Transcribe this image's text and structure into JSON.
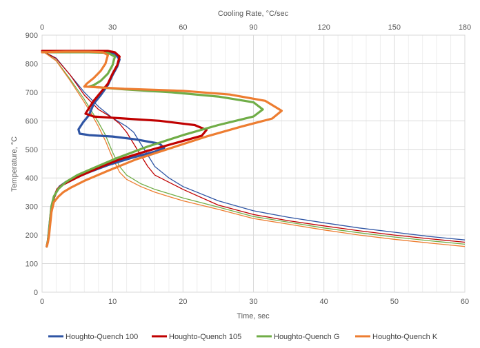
{
  "chart_data": {
    "type": "line",
    "title": "",
    "xlabel": "Time, sec",
    "x2label": "Cooling Rate, °C/sec",
    "ylabel": "Temperature, °C",
    "xlim": [
      0,
      60
    ],
    "x2lim": [
      0,
      180
    ],
    "ylim": [
      0,
      900
    ],
    "x_ticks": [
      0,
      10,
      20,
      30,
      40,
      50,
      60
    ],
    "x2_ticks": [
      0,
      30,
      60,
      90,
      120,
      150,
      180
    ],
    "y_ticks": [
      0,
      100,
      200,
      300,
      400,
      500,
      600,
      700,
      800,
      900
    ],
    "grid": true,
    "legend_position": "bottom",
    "series": [
      {
        "name": "Houghto-Quench 100",
        "color": "#2F55A4",
        "time_temperature": [
          [
            0,
            845
          ],
          [
            2,
            820
          ],
          [
            4,
            760
          ],
          [
            6,
            700
          ],
          [
            8,
            650
          ],
          [
            10,
            610
          ],
          [
            12,
            580
          ],
          [
            13,
            560
          ],
          [
            14,
            520
          ],
          [
            15,
            480
          ],
          [
            16,
            440
          ],
          [
            18,
            400
          ],
          [
            20,
            370
          ],
          [
            25,
            320
          ],
          [
            30,
            285
          ],
          [
            35,
            262
          ],
          [
            40,
            243
          ],
          [
            45,
            225
          ],
          [
            50,
            210
          ],
          [
            55,
            195
          ],
          [
            60,
            183
          ]
        ],
        "cooling_rate_temperature": [
          [
            0,
            840
          ],
          [
            20,
            840
          ],
          [
            28,
            840
          ],
          [
            31,
            835
          ],
          [
            33,
            815
          ],
          [
            32,
            790
          ],
          [
            30,
            760
          ],
          [
            28,
            725
          ],
          [
            25,
            690
          ],
          [
            22,
            660
          ],
          [
            20,
            620
          ],
          [
            17.5,
            595
          ],
          [
            15.5,
            570
          ],
          [
            16,
            555
          ],
          [
            20,
            550
          ],
          [
            30,
            545
          ],
          [
            40,
            535
          ],
          [
            50,
            520
          ],
          [
            52,
            505
          ],
          [
            48,
            492
          ],
          [
            38,
            470
          ],
          [
            28,
            445
          ],
          [
            20,
            420
          ],
          [
            14,
            400
          ],
          [
            10,
            385
          ],
          [
            7.5,
            370
          ],
          [
            6,
            350
          ],
          [
            5,
            330
          ],
          [
            4,
            300
          ],
          [
            3.5,
            260
          ],
          [
            3,
            220
          ],
          [
            2.5,
            180
          ],
          [
            2,
            160
          ]
        ]
      },
      {
        "name": "Houghto-Quench 105",
        "color": "#C00000",
        "time_temperature": [
          [
            0,
            845
          ],
          [
            2,
            818
          ],
          [
            4,
            760
          ],
          [
            6,
            690
          ],
          [
            8,
            640
          ],
          [
            10,
            610
          ],
          [
            11,
            590
          ],
          [
            12,
            560
          ],
          [
            13,
            520
          ],
          [
            14,
            480
          ],
          [
            15,
            440
          ],
          [
            16,
            410
          ],
          [
            18,
            385
          ],
          [
            20,
            360
          ],
          [
            25,
            305
          ],
          [
            30,
            272
          ],
          [
            35,
            250
          ],
          [
            40,
            232
          ],
          [
            45,
            215
          ],
          [
            50,
            200
          ],
          [
            55,
            187
          ],
          [
            60,
            175
          ]
        ],
        "cooling_rate_temperature": [
          [
            0,
            845
          ],
          [
            20,
            845
          ],
          [
            28,
            845
          ],
          [
            31,
            840
          ],
          [
            33,
            825
          ],
          [
            32,
            795
          ],
          [
            30,
            765
          ],
          [
            28,
            730
          ],
          [
            25,
            700
          ],
          [
            22,
            670
          ],
          [
            20,
            645
          ],
          [
            18.5,
            625
          ],
          [
            22,
            615
          ],
          [
            35,
            608
          ],
          [
            50,
            600
          ],
          [
            65,
            585
          ],
          [
            70,
            568
          ],
          [
            68,
            548
          ],
          [
            58,
            525
          ],
          [
            45,
            495
          ],
          [
            33,
            465
          ],
          [
            24,
            435
          ],
          [
            17,
            410
          ],
          [
            12,
            390
          ],
          [
            8.5,
            375
          ],
          [
            6.5,
            360
          ],
          [
            5,
            330
          ],
          [
            4,
            290
          ],
          [
            3.5,
            250
          ],
          [
            3,
            210
          ],
          [
            2.5,
            180
          ],
          [
            2,
            160
          ]
        ]
      },
      {
        "name": "Houghto-Quench G",
        "color": "#70AD47",
        "time_temperature": [
          [
            0,
            845
          ],
          [
            2,
            812
          ],
          [
            4,
            745
          ],
          [
            6,
            675
          ],
          [
            8,
            595
          ],
          [
            9,
            550
          ],
          [
            10,
            490
          ],
          [
            11,
            440
          ],
          [
            12,
            410
          ],
          [
            14,
            380
          ],
          [
            16,
            360
          ],
          [
            18,
            345
          ],
          [
            20,
            330
          ],
          [
            25,
            298
          ],
          [
            30,
            265
          ],
          [
            35,
            245
          ],
          [
            40,
            225
          ],
          [
            45,
            208
          ],
          [
            50,
            193
          ],
          [
            55,
            180
          ],
          [
            60,
            168
          ]
        ],
        "cooling_rate_temperature": [
          [
            0,
            840
          ],
          [
            10,
            840
          ],
          [
            20,
            840
          ],
          [
            28,
            838
          ],
          [
            31,
            825
          ],
          [
            30,
            795
          ],
          [
            28,
            765
          ],
          [
            25,
            740
          ],
          [
            22,
            725
          ],
          [
            20,
            720
          ],
          [
            35,
            710
          ],
          [
            55,
            700
          ],
          [
            75,
            685
          ],
          [
            90,
            665
          ],
          [
            94,
            640
          ],
          [
            90,
            615
          ],
          [
            75,
            585
          ],
          [
            60,
            550
          ],
          [
            45,
            510
          ],
          [
            32,
            470
          ],
          [
            22,
            435
          ],
          [
            15,
            410
          ],
          [
            10,
            385
          ],
          [
            7,
            362
          ],
          [
            5,
            335
          ],
          [
            4,
            300
          ],
          [
            3.5,
            260
          ],
          [
            3,
            215
          ],
          [
            2.5,
            180
          ],
          [
            2,
            160
          ]
        ]
      },
      {
        "name": "Houghto-Quench K",
        "color": "#ED7D31",
        "time_temperature": [
          [
            0,
            845
          ],
          [
            2,
            810
          ],
          [
            4,
            740
          ],
          [
            6,
            665
          ],
          [
            7,
            625
          ],
          [
            8,
            580
          ],
          [
            9,
            530
          ],
          [
            10,
            470
          ],
          [
            11,
            420
          ],
          [
            12,
            395
          ],
          [
            14,
            370
          ],
          [
            16,
            350
          ],
          [
            18,
            335
          ],
          [
            20,
            320
          ],
          [
            25,
            290
          ],
          [
            30,
            258
          ],
          [
            35,
            238
          ],
          [
            40,
            218
          ],
          [
            45,
            200
          ],
          [
            50,
            185
          ],
          [
            55,
            172
          ],
          [
            60,
            160
          ]
        ],
        "cooling_rate_temperature": [
          [
            0,
            840
          ],
          [
            10,
            842
          ],
          [
            20,
            842
          ],
          [
            26,
            840
          ],
          [
            28,
            830
          ],
          [
            27,
            800
          ],
          [
            25,
            775
          ],
          [
            22,
            750
          ],
          [
            19,
            730
          ],
          [
            18,
            720
          ],
          [
            35,
            712
          ],
          [
            60,
            705
          ],
          [
            80,
            692
          ],
          [
            95,
            670
          ],
          [
            102,
            635
          ],
          [
            98,
            608
          ],
          [
            85,
            580
          ],
          [
            70,
            545
          ],
          [
            55,
            505
          ],
          [
            40,
            465
          ],
          [
            28,
            425
          ],
          [
            18,
            390
          ],
          [
            12,
            365
          ],
          [
            9,
            350
          ],
          [
            7,
            335
          ],
          [
            5,
            315
          ],
          [
            4,
            280
          ],
          [
            3.5,
            240
          ],
          [
            3,
            200
          ],
          [
            2.5,
            175
          ],
          [
            2,
            160
          ]
        ]
      }
    ]
  }
}
